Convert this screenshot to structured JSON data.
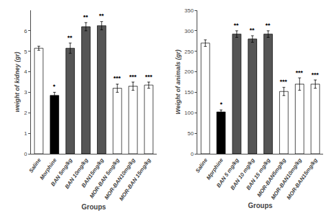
{
  "chart_data": [
    {
      "type": "bar",
      "x_label": "Groups",
      "y_label": "weight of kidney (gr)",
      "categories": [
        "Saline",
        "Morphine",
        "BAN 5mg/kg",
        "BAN 10mg/kg",
        "BAN15mg/kg",
        "MOR-BAN 5mg/kg",
        "MOR-BAN10mg/kg",
        "MOR-BAN 15mg/kg"
      ],
      "values": [
        5.15,
        2.85,
        5.15,
        6.2,
        6.25,
        3.2,
        3.3,
        3.35
      ],
      "errors": [
        0.1,
        0.15,
        0.25,
        0.2,
        0.2,
        0.2,
        0.2,
        0.15
      ],
      "colors": [
        "white",
        "black",
        "#555555",
        "#555555",
        "#555555",
        "white",
        "white",
        "white"
      ],
      "ylim": [
        0,
        7
      ],
      "yticks": [
        0,
        1,
        2,
        3,
        4,
        5,
        6
      ],
      "grid": false,
      "annotations": [
        {
          "category": "Morphine",
          "text": "*"
        },
        {
          "category": "BAN 5mg/kg",
          "text": "**"
        },
        {
          "category": "BAN 10mg/kg",
          "text": "**"
        },
        {
          "category": "BAN15mg/kg",
          "text": "**"
        },
        {
          "category": "MOR-BAN 5mg/kg",
          "text": "***"
        },
        {
          "category": "MOR-BAN10mg/kg",
          "text": "***"
        },
        {
          "category": "MOR-BAN 15mg/kg",
          "text": "***"
        }
      ]
    },
    {
      "type": "bar",
      "x_label": "Groups",
      "y_label": "Weight of animals (gr)",
      "categories": [
        "Saline",
        "Mprphine",
        "BAN 5 mg/kg",
        "BAN 10 mg/kg",
        "BAN 15 mg/kg",
        "MOR-BAN5mg/kg",
        "MOR-BAN10mg/kg",
        "MOR-BAN15mg/kg"
      ],
      "values": [
        270,
        102,
        292,
        280,
        292,
        152,
        170,
        170
      ],
      "errors": [
        8,
        5,
        8,
        8,
        8,
        10,
        15,
        10
      ],
      "colors": [
        "white",
        "black",
        "#555555",
        "#555555",
        "#555555",
        "white",
        "white",
        "white"
      ],
      "ylim": [
        0,
        350
      ],
      "yticks": [
        0,
        50,
        100,
        150,
        200,
        250,
        300,
        350
      ],
      "grid": false,
      "annotations": [
        {
          "category": "Mprphine",
          "text": "*"
        },
        {
          "category": "BAN 5 mg/kg",
          "text": "**"
        },
        {
          "category": "BAN 10 mg/kg",
          "text": "**"
        },
        {
          "category": "BAN 15 mg/kg",
          "text": "**"
        },
        {
          "category": "MOR-BAN5mg/kg",
          "text": "***"
        },
        {
          "category": "MOR-BAN10mg/kg",
          "text": "***"
        },
        {
          "category": "MOR-BAN15mg/kg",
          "text": "***"
        }
      ]
    }
  ]
}
